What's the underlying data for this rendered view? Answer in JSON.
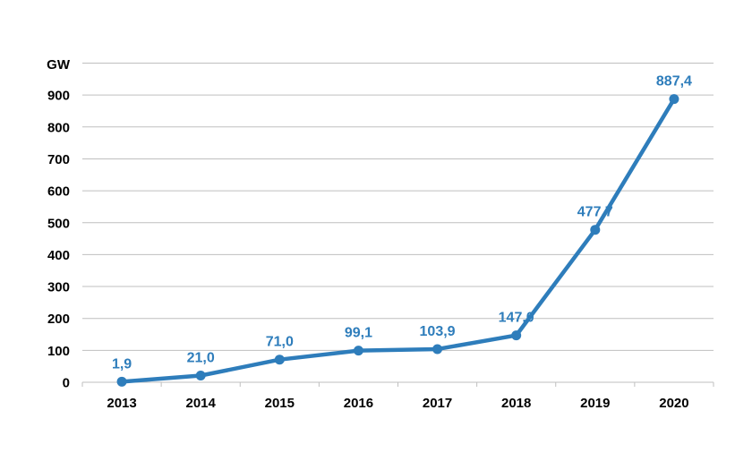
{
  "chart_data": {
    "type": "line",
    "title": "",
    "xlabel": "",
    "ylabel": "GW",
    "ylim": [
      0,
      1000
    ],
    "yticks": [
      0,
      100,
      200,
      300,
      400,
      500,
      600,
      700,
      800,
      900
    ],
    "categories": [
      "2013",
      "2014",
      "2015",
      "2016",
      "2017",
      "2018",
      "2019",
      "2020"
    ],
    "series": [
      {
        "values": [
          1.9,
          21.0,
          71.0,
          99.1,
          103.9,
          147.0,
          477.7,
          887.4
        ],
        "data_labels": [
          "1,9",
          "21,0",
          "71,0",
          "99,1",
          "103,9",
          "147,0",
          "477,7",
          "887,4"
        ]
      }
    ],
    "grid": true,
    "legend": "none",
    "colors": {
      "series": "#2e7dbb",
      "grid": "#bfbfbf",
      "text": "#000000"
    }
  }
}
